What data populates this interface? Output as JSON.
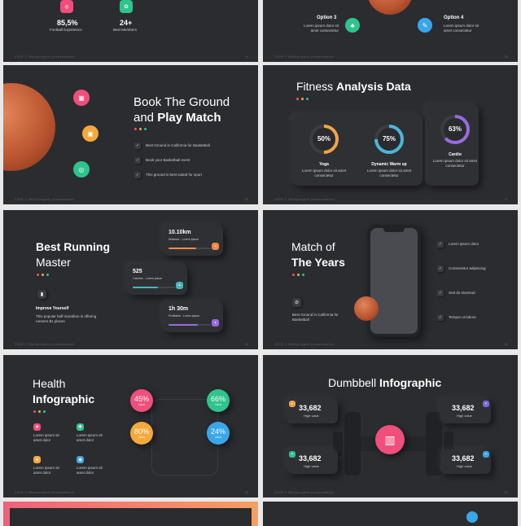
{
  "footer": "2023 // Multiproject presentation",
  "page_nums": {
    "s1": "14",
    "s2": "15",
    "s3": "16",
    "s4": "17",
    "s5": "18",
    "s6": "19",
    "s7": "20",
    "s8": "21"
  },
  "slide1": {
    "stat1_value": "85,5%",
    "stat1_label": "Football Experience",
    "stat2_value": "24+",
    "stat2_label": "Best Members"
  },
  "slide2": {
    "opt3_title": "Option 3",
    "opt3_desc": "Lorem ipsum dolor sit amet consectetur",
    "opt4_title": "Option 4",
    "opt4_desc": "Lorem ipsum dolor sit amet consectetur"
  },
  "slide3": {
    "title_light": "Book The Ground",
    "title_and": "and ",
    "title_bold": "Play Match",
    "items": [
      "Best Ground in California for Basketball",
      "Book your Basketball event",
      "This ground is best suited for sport"
    ]
  },
  "slide4": {
    "title_light": "Fitness ",
    "title_bold": "Analysis Data",
    "cards": [
      {
        "value": "50%",
        "label": "Yoga",
        "desc": "Lorem ipsum dolor sit amet consectetur",
        "color": "#f0a24a",
        "pct": 50
      },
      {
        "value": "75%",
        "label": "Dynamic Warm up",
        "desc": "Lorem ipsum dolor sit amet consectetur",
        "color": "#4ab6d8",
        "pct": 75
      },
      {
        "value": "63%",
        "label": "Cardio",
        "desc": "Lorem ipsum dolor sit amet consectetur",
        "color": "#9a6ae0",
        "pct": 63
      }
    ]
  },
  "slide5": {
    "title_bold": "Best Running",
    "title_light": "Master",
    "sub_title": "Improve Yourself",
    "sub_desc": "This popular half marathon is offering runners $1 places",
    "cards": [
      {
        "value": "10.10km",
        "label": "Distance - Lorem Ipsum",
        "color": "#f08a4a",
        "pct": 65
      },
      {
        "value": "525",
        "label": "Calories - Lorem ipsum",
        "color": "#4ab6c0",
        "pct": 60
      },
      {
        "value": "1h 30m",
        "label": "Profitable - Lorem ipsum",
        "color": "#9a6ae0",
        "pct": 70
      }
    ]
  },
  "slide6": {
    "title_light": "Match of",
    "title_bold": "The Years",
    "sub_desc": "Best Ground in California for Basketball",
    "items": [
      "Lorem ipsum dolor",
      "Consectetur adipiscing",
      "Sed do eiusmod",
      "Tempor ut labore"
    ]
  },
  "slide7": {
    "title_light": "Health",
    "title_bold": "Infographic",
    "bubbles": [
      {
        "value": "45%",
        "label": "Value",
        "color": "#ef4f7a"
      },
      {
        "value": "66%",
        "label": "Value",
        "color": "#2fc38d"
      },
      {
        "value": "80%",
        "label": "Value",
        "color": "#f4a93b"
      },
      {
        "value": "24%",
        "label": "Value",
        "color": "#3aa6ea"
      }
    ],
    "items": [
      "Lorem ipsum sit amet dolor",
      "Lorem ipsum sit amet dolor",
      "Lorem ipsum sit amet dolor",
      "Lorem ipsum sit amet dolor"
    ]
  },
  "slide8": {
    "title_light": "Dumbbell ",
    "title_bold": "Infographic",
    "stats": [
      {
        "value": "33,682",
        "label": "High value",
        "color": "#f0a24a"
      },
      {
        "value": "33,682",
        "label": "High value",
        "color": "#7a6ae0"
      },
      {
        "value": "33,682",
        "label": "High value",
        "color": "#2fc38d"
      },
      {
        "value": "33,682",
        "label": "High value",
        "color": "#3aa6ea"
      }
    ]
  }
}
